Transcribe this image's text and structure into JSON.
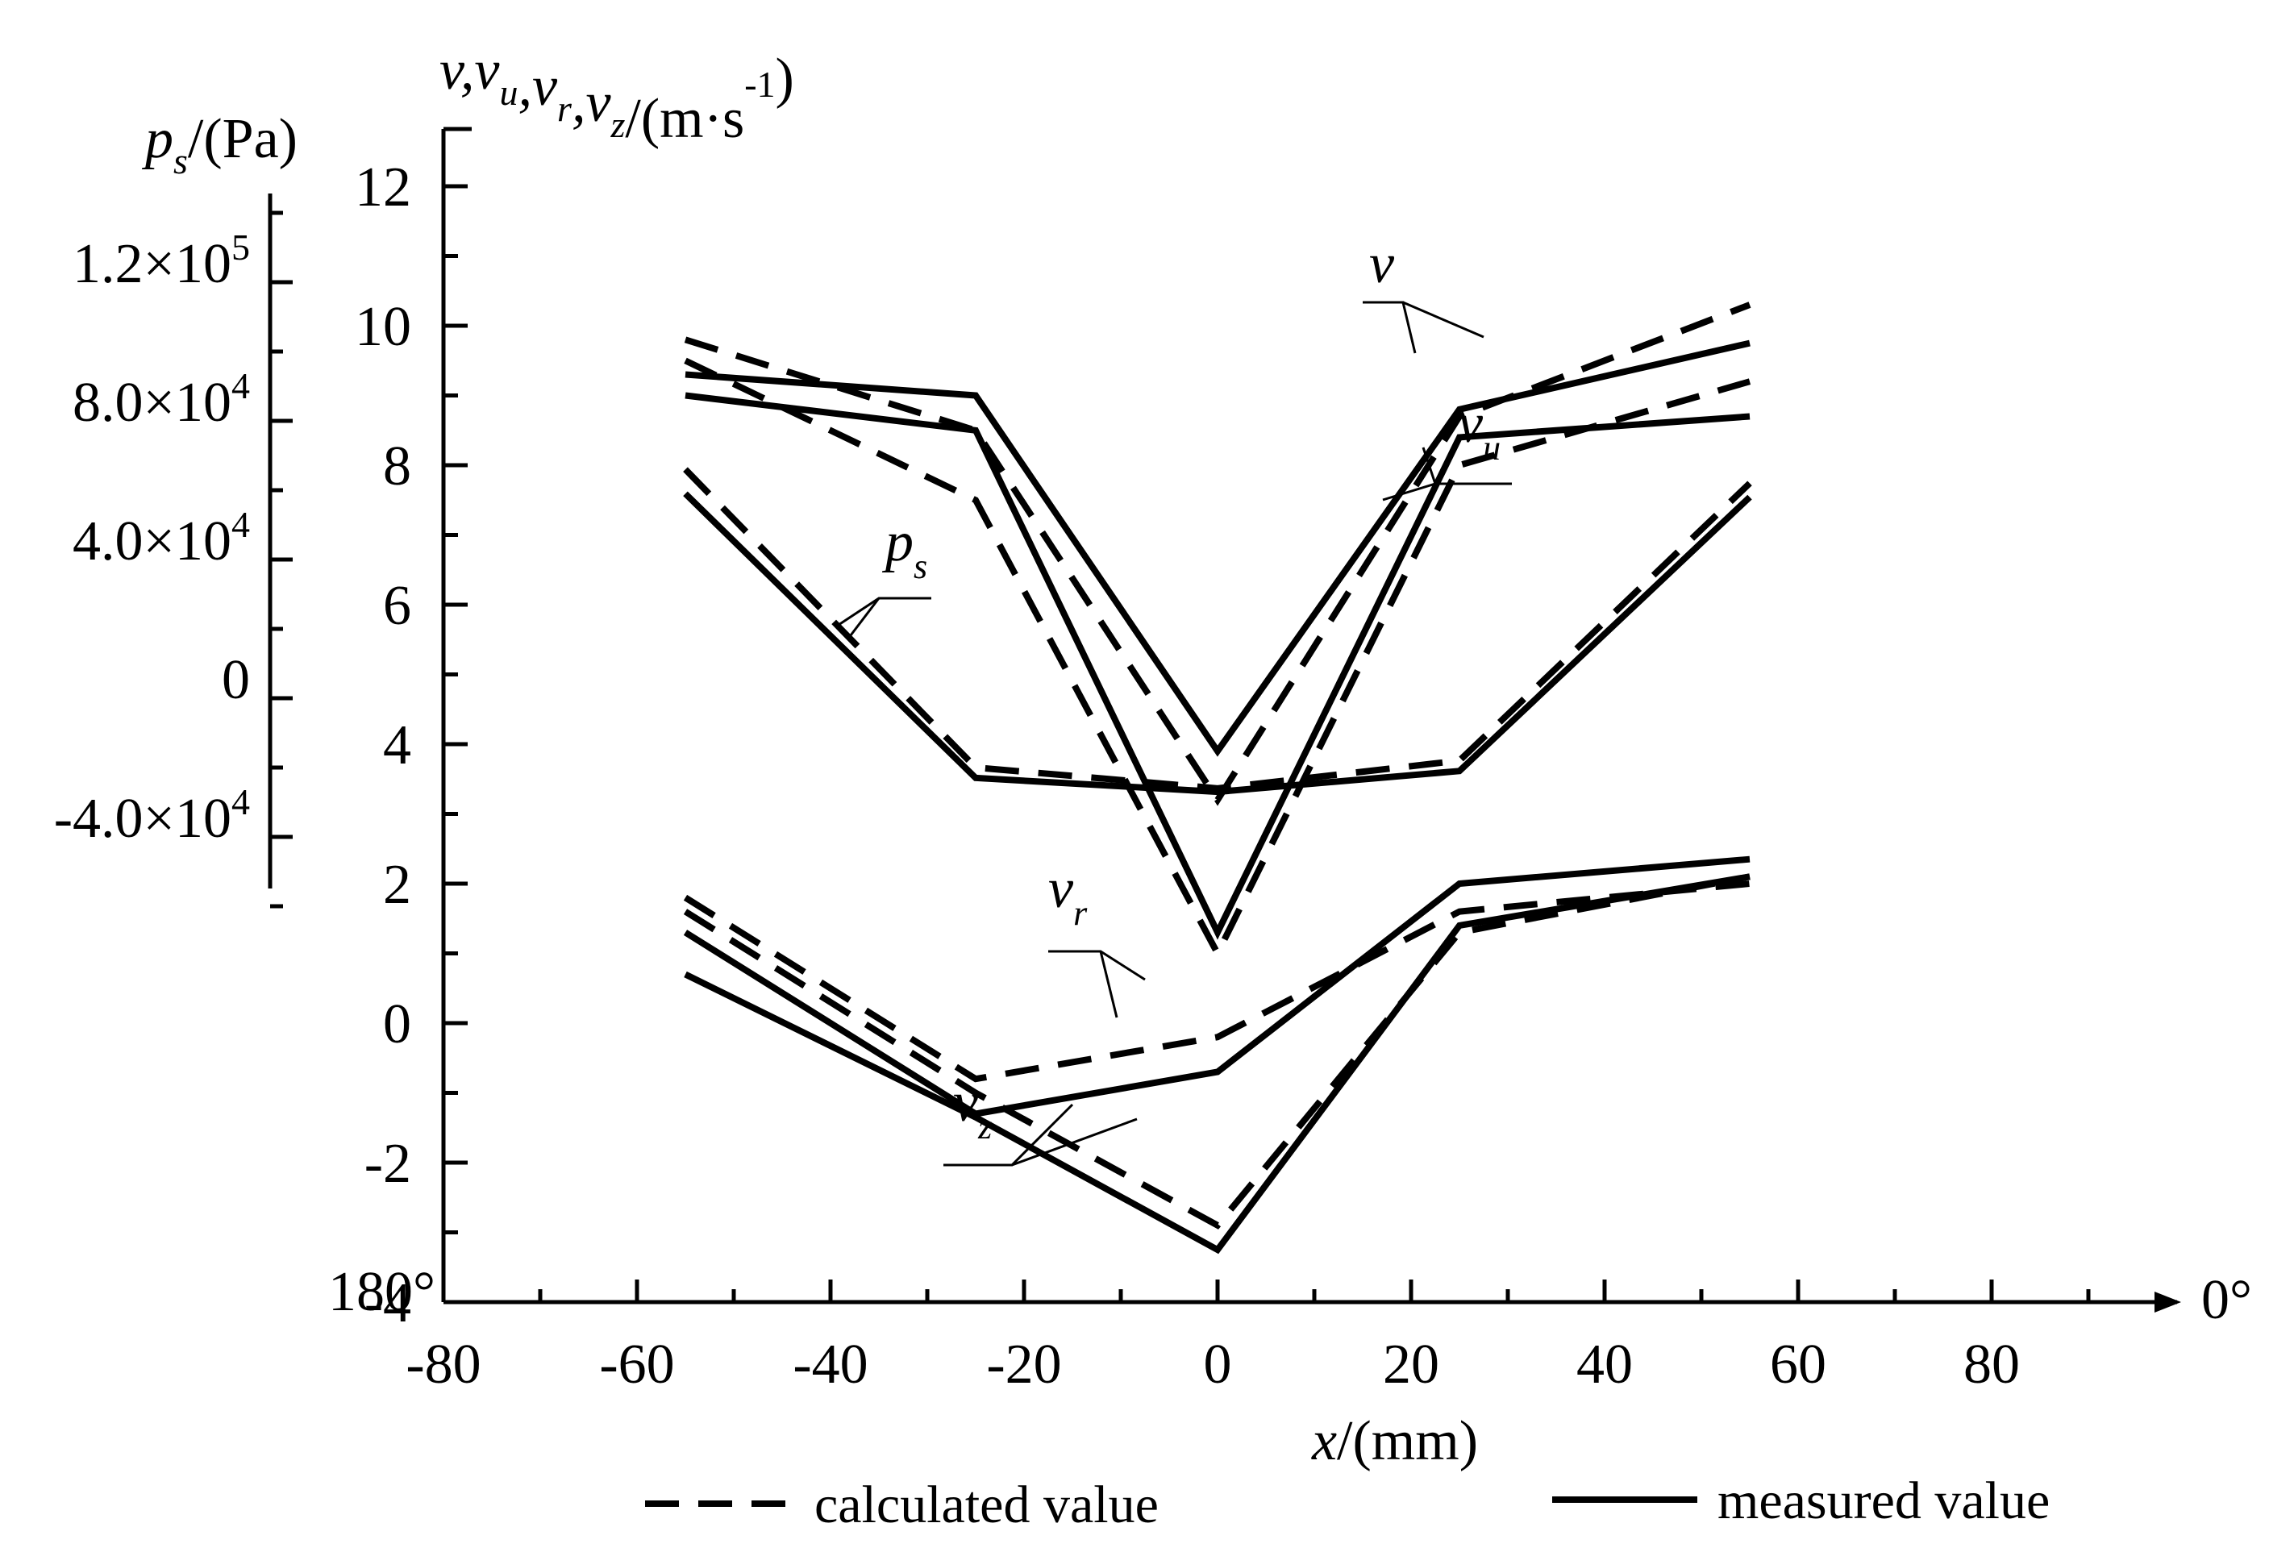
{
  "chart_data": {
    "type": "line",
    "title": "",
    "xlabel": "x/(mm)",
    "ylabel": "v,vu,vr,vz/(m·s-1)",
    "y2label": "ps/(Pa)",
    "x_start_label": "180°",
    "x_end_label": "0°",
    "xlim": [
      -80,
      100
    ],
    "ylim": [
      -4,
      12
    ],
    "xticks": [
      -80,
      -60,
      -40,
      -20,
      0,
      20,
      40,
      60,
      80
    ],
    "yticks": [
      -4,
      -2,
      0,
      2,
      4,
      6,
      8,
      10,
      12
    ],
    "y2ticks": [
      "-4.0×10^4",
      "0",
      "4.0×10^4",
      "8.0×10^4",
      "1.2×10^5"
    ],
    "y2tick_values": [
      -40000,
      0,
      40000,
      80000,
      120000
    ],
    "y2lim": [
      -60000,
      140000
    ],
    "x": [
      -55,
      -25,
      0,
      25,
      55
    ],
    "series": [
      {
        "name": "v calculated",
        "style": "dashed",
        "values": [
          9.8,
          8.5,
          3.2,
          8.7,
          10.3
        ]
      },
      {
        "name": "v measured",
        "style": "solid",
        "values": [
          9.3,
          9.0,
          3.9,
          8.8,
          9.75
        ]
      },
      {
        "name": "vu calculated",
        "style": "dashed",
        "values": [
          9.5,
          7.5,
          1.0,
          8.0,
          9.2
        ]
      },
      {
        "name": "vu measured",
        "style": "solid",
        "values": [
          9.0,
          8.5,
          1.3,
          8.4,
          8.7
        ]
      },
      {
        "name": "ps calculated",
        "style": "dashed",
        "y_axis": "y2",
        "values": [
          66000,
          -20000,
          -26000,
          -18000,
          62000
        ]
      },
      {
        "name": "ps measured",
        "style": "solid",
        "y_axis": "y2",
        "values": [
          59000,
          -23000,
          -27000,
          -21000,
          58000
        ]
      },
      {
        "name": "vr calculated",
        "style": "dashed",
        "values": [
          1.8,
          -0.8,
          -0.2,
          1.6,
          2.0
        ]
      },
      {
        "name": "vr measured",
        "style": "solid",
        "values": [
          1.3,
          -1.3,
          -0.7,
          2.0,
          2.35
        ]
      },
      {
        "name": "vz calculated",
        "style": "dashed",
        "values": [
          1.6,
          -1.0,
          -2.9,
          1.3,
          2.1
        ]
      },
      {
        "name": "vz measured",
        "style": "solid",
        "values": [
          0.7,
          -1.35,
          -3.25,
          1.4,
          2.1
        ]
      }
    ],
    "annotations": [
      {
        "label": "v",
        "sub": ""
      },
      {
        "label": "v",
        "sub": "u"
      },
      {
        "label": "p",
        "sub": "s"
      },
      {
        "label": "v",
        "sub": "r"
      },
      {
        "label": "v",
        "sub": "z"
      }
    ],
    "legend": [
      {
        "label": "calculated value",
        "style": "dashed"
      },
      {
        "label": "measured value",
        "style": "solid"
      }
    ],
    "legend_position": "bottom"
  }
}
